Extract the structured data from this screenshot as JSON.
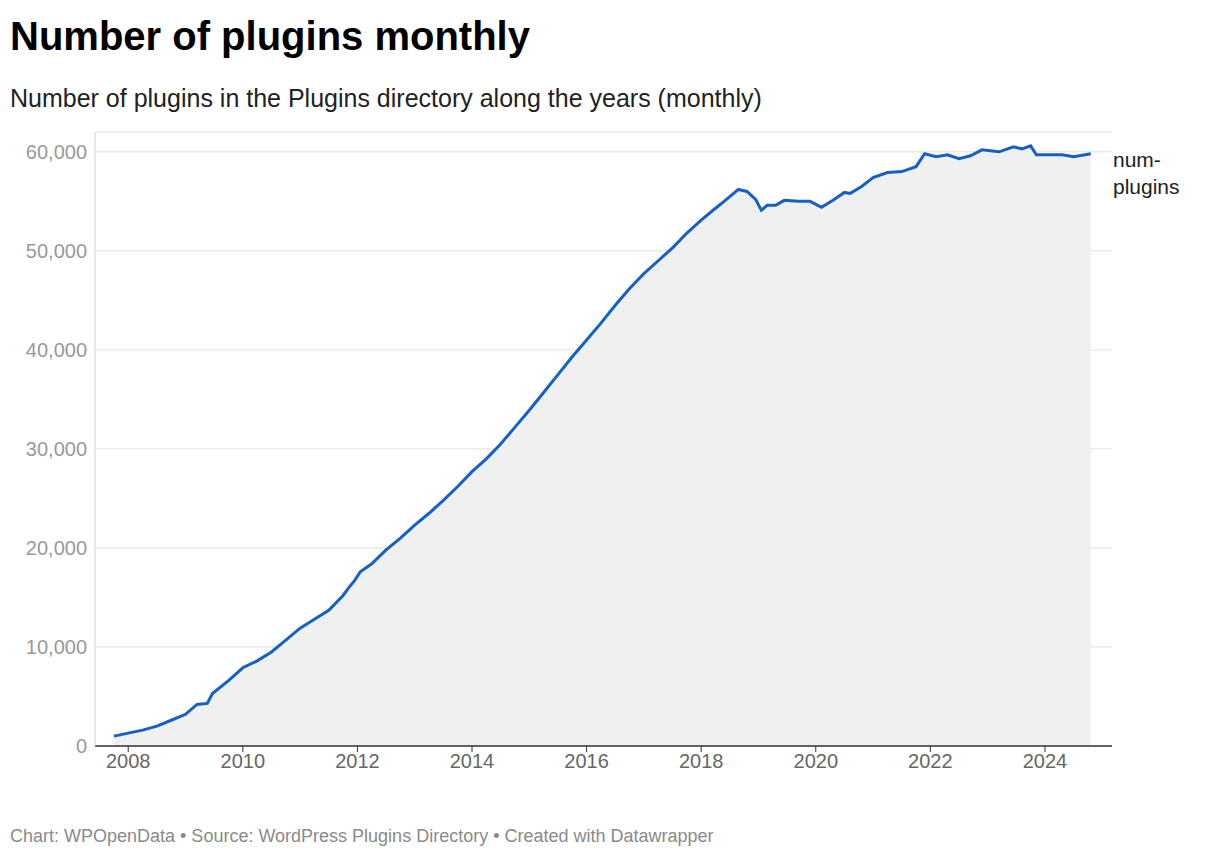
{
  "chart_data": {
    "type": "area",
    "title": "Number of plugins monthly",
    "subtitle": "Number of plugins in the Plugins directory along the years (monthly)",
    "source": "Chart: WPOpenData • Source: WordPress Plugins Directory • Created with Datawrapper",
    "x": [
      2007.75,
      2008.0,
      2008.25,
      2008.5,
      2008.75,
      2009.0,
      2009.2,
      2009.38,
      2009.47,
      2009.75,
      2010.0,
      2010.25,
      2010.5,
      2010.75,
      2011.0,
      2011.25,
      2011.5,
      2011.75,
      2011.85,
      2011.95,
      2012.05,
      2012.25,
      2012.5,
      2012.75,
      2013.0,
      2013.25,
      2013.5,
      2013.75,
      2014.0,
      2014.25,
      2014.5,
      2014.75,
      2015.0,
      2015.25,
      2015.5,
      2015.75,
      2016.0,
      2016.25,
      2016.5,
      2016.75,
      2017.0,
      2017.25,
      2017.5,
      2017.75,
      2018.0,
      2018.25,
      2018.4,
      2018.65,
      2018.8,
      2018.95,
      2019.05,
      2019.15,
      2019.3,
      2019.45,
      2019.7,
      2019.9,
      2020.1,
      2020.3,
      2020.5,
      2020.6,
      2020.8,
      2021.0,
      2021.25,
      2021.5,
      2021.75,
      2021.9,
      2022.1,
      2022.3,
      2022.5,
      2022.7,
      2022.9,
      2023.2,
      2023.45,
      2023.6,
      2023.75,
      2023.85,
      2024.1,
      2024.3,
      2024.5,
      2024.8
    ],
    "series": [
      {
        "name": "num-plugins",
        "color": "#1660c2",
        "values": [
          1000,
          1300,
          1600,
          2000,
          2600,
          3200,
          4200,
          4300,
          5300,
          6600,
          7900,
          8600,
          9500,
          10700,
          11900,
          12800,
          13700,
          15200,
          16000,
          16700,
          17600,
          18400,
          19800,
          21000,
          22300,
          23500,
          24800,
          26200,
          27700,
          29000,
          30500,
          32200,
          33900,
          35700,
          37500,
          39300,
          41000,
          42700,
          44500,
          46200,
          47700,
          49000,
          50300,
          51800,
          53100,
          54300,
          55000,
          56200,
          56000,
          55200,
          54100,
          54600,
          54600,
          55100,
          55000,
          55000,
          54400,
          55100,
          55900,
          55800,
          56500,
          57400,
          57900,
          58000,
          58500,
          59800,
          59500,
          59700,
          59300,
          59600,
          60200,
          60000,
          60500,
          60300,
          60600,
          59700,
          59700,
          59700,
          59500,
          59800
        ]
      }
    ],
    "xlim": [
      2007.42,
      2025.17
    ],
    "xticks": [
      2008,
      2010,
      2012,
      2014,
      2016,
      2018,
      2020,
      2022,
      2024
    ],
    "ylim": [
      0,
      62000
    ],
    "yticks": [
      0,
      {
        "value": 10000,
        "label": "10,000"
      },
      {
        "value": 20000,
        "label": "20,000"
      },
      {
        "value": 30000,
        "label": "30,000"
      },
      {
        "value": 40000,
        "label": "40,000"
      },
      {
        "value": 50000,
        "label": "50,000"
      },
      {
        "value": 60000,
        "label": "60,000"
      }
    ],
    "grid": true
  }
}
